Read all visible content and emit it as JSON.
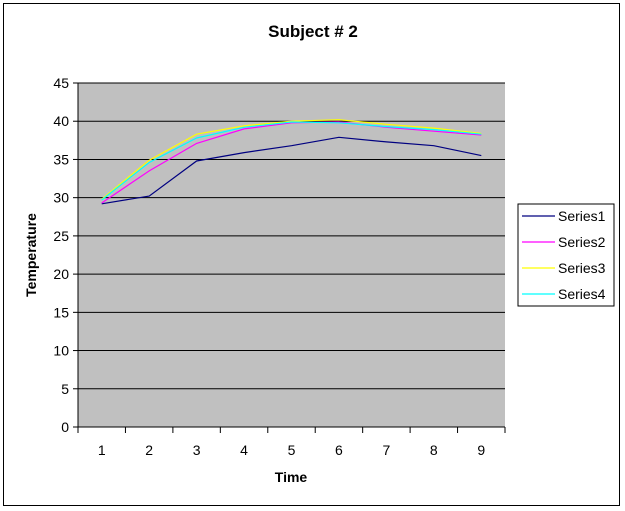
{
  "chart_data": {
    "type": "line",
    "title": "Subject # 2",
    "xlabel": "Time",
    "ylabel": "Temperature",
    "categories": [
      "1",
      "2",
      "3",
      "4",
      "5",
      "6",
      "7",
      "8",
      "9"
    ],
    "ylim": [
      0,
      45
    ],
    "yticks": [
      "0",
      "5",
      "10",
      "15",
      "20",
      "25",
      "30",
      "35",
      "40",
      "45"
    ],
    "grid": true,
    "legend": "right",
    "plot_background": "#c0c0c0",
    "series": [
      {
        "name": "Series1",
        "color": "#000080",
        "values": [
          29.2,
          30.2,
          34.8,
          35.9,
          36.8,
          37.9,
          37.3,
          36.8,
          35.5
        ]
      },
      {
        "name": "Series2",
        "color": "#ff00ff",
        "values": [
          29.3,
          33.5,
          37.1,
          39.0,
          39.8,
          39.9,
          39.2,
          38.7,
          38.2
        ]
      },
      {
        "name": "Series3",
        "color": "#ffff00",
        "values": [
          29.8,
          34.9,
          38.3,
          39.4,
          40.0,
          40.2,
          39.6,
          39.1,
          38.4
        ]
      },
      {
        "name": "Series4",
        "color": "#00ffff",
        "values": [
          29.7,
          34.6,
          37.8,
          39.2,
          39.9,
          39.8,
          39.3,
          38.9,
          38.3
        ]
      }
    ]
  }
}
